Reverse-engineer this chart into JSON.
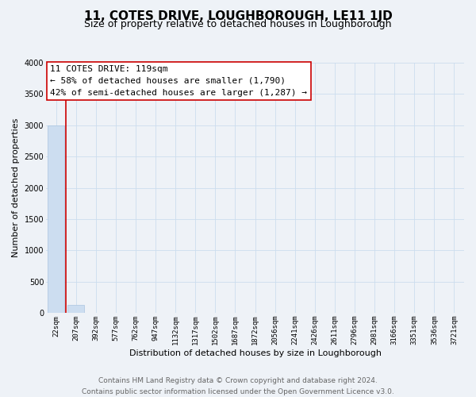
{
  "title": "11, COTES DRIVE, LOUGHBOROUGH, LE11 1JD",
  "subtitle": "Size of property relative to detached houses in Loughborough",
  "xlabel": "Distribution of detached houses by size in Loughborough",
  "ylabel": "Number of detached properties",
  "categories": [
    "22sqm",
    "207sqm",
    "392sqm",
    "577sqm",
    "762sqm",
    "947sqm",
    "1132sqm",
    "1317sqm",
    "1502sqm",
    "1687sqm",
    "1872sqm",
    "2056sqm",
    "2241sqm",
    "2426sqm",
    "2611sqm",
    "2796sqm",
    "2981sqm",
    "3166sqm",
    "3351sqm",
    "3536sqm",
    "3721sqm"
  ],
  "values": [
    3000,
    130,
    0,
    0,
    0,
    0,
    0,
    0,
    0,
    0,
    0,
    0,
    0,
    0,
    0,
    0,
    0,
    0,
    0,
    0,
    0
  ],
  "bar_color": "#ccddf0",
  "bar_edge_color": "#aac4e0",
  "marker_line_color": "#cc0000",
  "ylim": [
    0,
    4000
  ],
  "yticks": [
    0,
    500,
    1000,
    1500,
    2000,
    2500,
    3000,
    3500,
    4000
  ],
  "grid_color": "#ccddee",
  "background_color": "#eef2f7",
  "annotation_text": "11 COTES DRIVE: 119sqm\n← 58% of detached houses are smaller (1,790)\n42% of semi-detached houses are larger (1,287) →",
  "annotation_box_color": "#ffffff",
  "annotation_box_edge_color": "#cc0000",
  "footer_line1": "Contains HM Land Registry data © Crown copyright and database right 2024.",
  "footer_line2": "Contains public sector information licensed under the Open Government Licence v3.0.",
  "title_fontsize": 11,
  "subtitle_fontsize": 9,
  "annotation_fontsize": 8,
  "footer_fontsize": 6.5,
  "xlabel_fontsize": 8,
  "ylabel_fontsize": 8,
  "tick_fontsize": 6.5,
  "ytick_fontsize": 7
}
